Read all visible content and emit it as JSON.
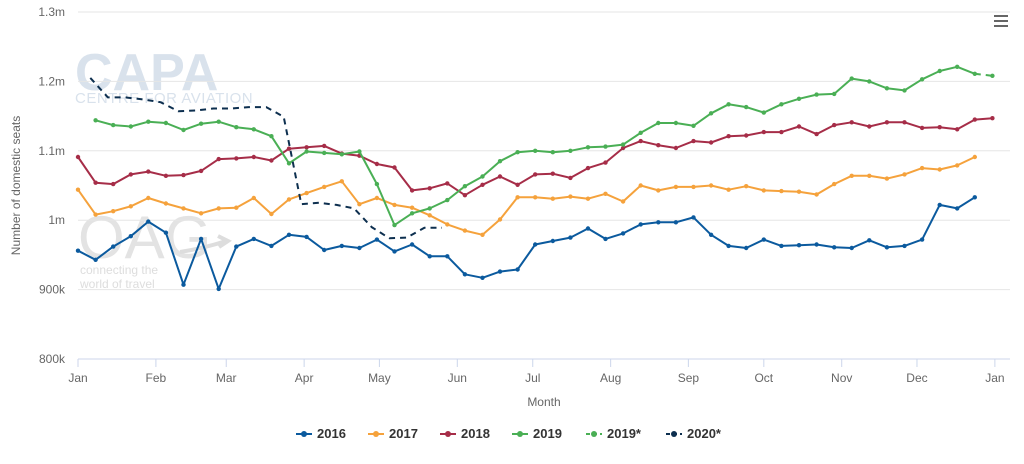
{
  "watermarks": {
    "capa_logo": "CAPA",
    "capa_subtitle": "CENTRE FOR AVIATION",
    "oag_logo": "OAG",
    "oag_tagline_1": "connecting the",
    "oag_tagline_2": "world of travel"
  },
  "menu": {
    "icon": "hamburger-menu-icon"
  },
  "chart_data": {
    "type": "line",
    "xlabel": "Month",
    "ylabel": "Number of domestic seats",
    "ylim": [
      800000,
      1300000
    ],
    "yticks": [
      800000,
      900000,
      1000000,
      1100000,
      1200000,
      1300000
    ],
    "ytick_labels": [
      "800k",
      "900k",
      "1m",
      "1.1m",
      "1.2m",
      "1.3m"
    ],
    "xlim": [
      0,
      53
    ],
    "xticks": [
      0,
      4.43,
      8.43,
      12.86,
      17.14,
      21.57,
      25.86,
      30.29,
      34.71,
      39.0,
      43.43,
      47.71,
      52.14
    ],
    "xtick_labels": [
      "Jan",
      "Feb",
      "Mar",
      "Apr",
      "May",
      "Jun",
      "Jul",
      "Aug",
      "Sep",
      "Oct",
      "Nov",
      "Dec",
      "Jan"
    ],
    "grid": "horizontal",
    "legend_position": "bottom-center",
    "series": [
      {
        "name": "2016",
        "color": "#0b5a9e",
        "dash": "solid",
        "start_week": 0,
        "values": [
          956000,
          943000,
          962000,
          977000,
          998000,
          982000,
          907000,
          973000,
          901000,
          962000,
          973000,
          963000,
          979000,
          976000,
          957000,
          963000,
          960000,
          972000,
          955000,
          965000,
          948000,
          948000,
          922000,
          917000,
          926000,
          929000,
          965000,
          970000,
          975000,
          988000,
          973000,
          981000,
          994000,
          997000,
          997000,
          1004000,
          979000,
          963000,
          960000,
          972000,
          963000,
          964000,
          965000,
          961000,
          960000,
          971000,
          961000,
          963000,
          972000,
          1022000,
          1017000,
          1033000
        ]
      },
      {
        "name": "2017",
        "color": "#f5a23c",
        "dash": "solid",
        "start_week": 0,
        "values": [
          1044000,
          1008000,
          1013000,
          1020000,
          1032000,
          1024000,
          1017000,
          1010000,
          1017000,
          1018000,
          1032000,
          1009000,
          1030000,
          1039000,
          1048000,
          1056000,
          1023000,
          1032000,
          1022000,
          1018000,
          1007000,
          994000,
          985000,
          979000,
          1001000,
          1033000,
          1033000,
          1031000,
          1034000,
          1031000,
          1038000,
          1027000,
          1050000,
          1043000,
          1048000,
          1048000,
          1050000,
          1044000,
          1049000,
          1043000,
          1042000,
          1041000,
          1037000,
          1052000,
          1064000,
          1064000,
          1060000,
          1066000,
          1075000,
          1073000,
          1079000,
          1091000
        ]
      },
      {
        "name": "2018",
        "color": "#a62d48",
        "dash": "solid",
        "start_week": 0,
        "values": [
          1091000,
          1054000,
          1052000,
          1066000,
          1070000,
          1064000,
          1065000,
          1071000,
          1088000,
          1089000,
          1091000,
          1086000,
          1103000,
          1105000,
          1107000,
          1096000,
          1093000,
          1081000,
          1076000,
          1043000,
          1046000,
          1053000,
          1036000,
          1051000,
          1063000,
          1051000,
          1066000,
          1067000,
          1061000,
          1075000,
          1083000,
          1104000,
          1114000,
          1108000,
          1104000,
          1114000,
          1112000,
          1121000,
          1122000,
          1127000,
          1127000,
          1135000,
          1124000,
          1137000,
          1141000,
          1135000,
          1141000,
          1141000,
          1133000,
          1134000,
          1131000,
          1145000,
          1147000
        ]
      },
      {
        "name": "2019",
        "color": "#4aaf55",
        "dash": "solid",
        "start_week": 1,
        "values": [
          1144000,
          1137000,
          1135000,
          1142000,
          1140000,
          1130000,
          1139000,
          1142000,
          1134000,
          1131000,
          1121000,
          1082000,
          1099000,
          1097000,
          1095000,
          1099000,
          1052000,
          993000,
          1010000,
          1017000,
          1029000,
          1049000,
          1063000,
          1085000,
          1098000,
          1100000,
          1098000,
          1100000,
          1105000,
          1106000,
          1109000,
          1126000,
          1140000,
          1140000,
          1136000,
          1154000,
          1167000,
          1163000,
          1155000,
          1167000,
          1175000,
          1181000,
          1182000,
          1204000,
          1200000,
          1190000,
          1187000,
          1203000,
          1215000,
          1221000,
          1211000
        ]
      },
      {
        "name": "2019*",
        "color": "#4aaf55",
        "dash": "dashed",
        "start_week": 51,
        "values": [
          1211000,
          1208000
        ]
      },
      {
        "name": "2020*",
        "color": "#0d2f4f",
        "dash": "dashed",
        "start_week": 0.7,
        "values": [
          1205000,
          1177000,
          1177000,
          1174000,
          1170000,
          1157000,
          1158000,
          1161000,
          1161000,
          1163000,
          1163000,
          1149000,
          1023000,
          1025000,
          1022000,
          1017000,
          990000,
          974000,
          975000,
          989000,
          989000
        ]
      }
    ]
  }
}
